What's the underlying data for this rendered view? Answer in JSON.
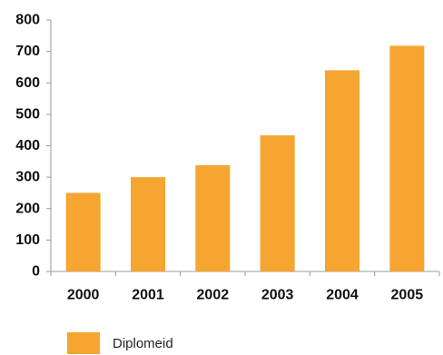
{
  "chart_data": {
    "type": "bar",
    "categories": [
      "2000",
      "2001",
      "2002",
      "2003",
      "2004",
      "2005"
    ],
    "series": [
      {
        "name": "Diplomeid",
        "values": [
          250,
          300,
          338,
          433,
          640,
          718
        ],
        "color": "#F5A530"
      }
    ],
    "ylim": [
      0,
      800
    ],
    "yticks": [
      "0",
      "100",
      "200",
      "300",
      "400",
      "500",
      "600",
      "700",
      "800"
    ],
    "grid": false,
    "legend_position": "bottom-left"
  }
}
